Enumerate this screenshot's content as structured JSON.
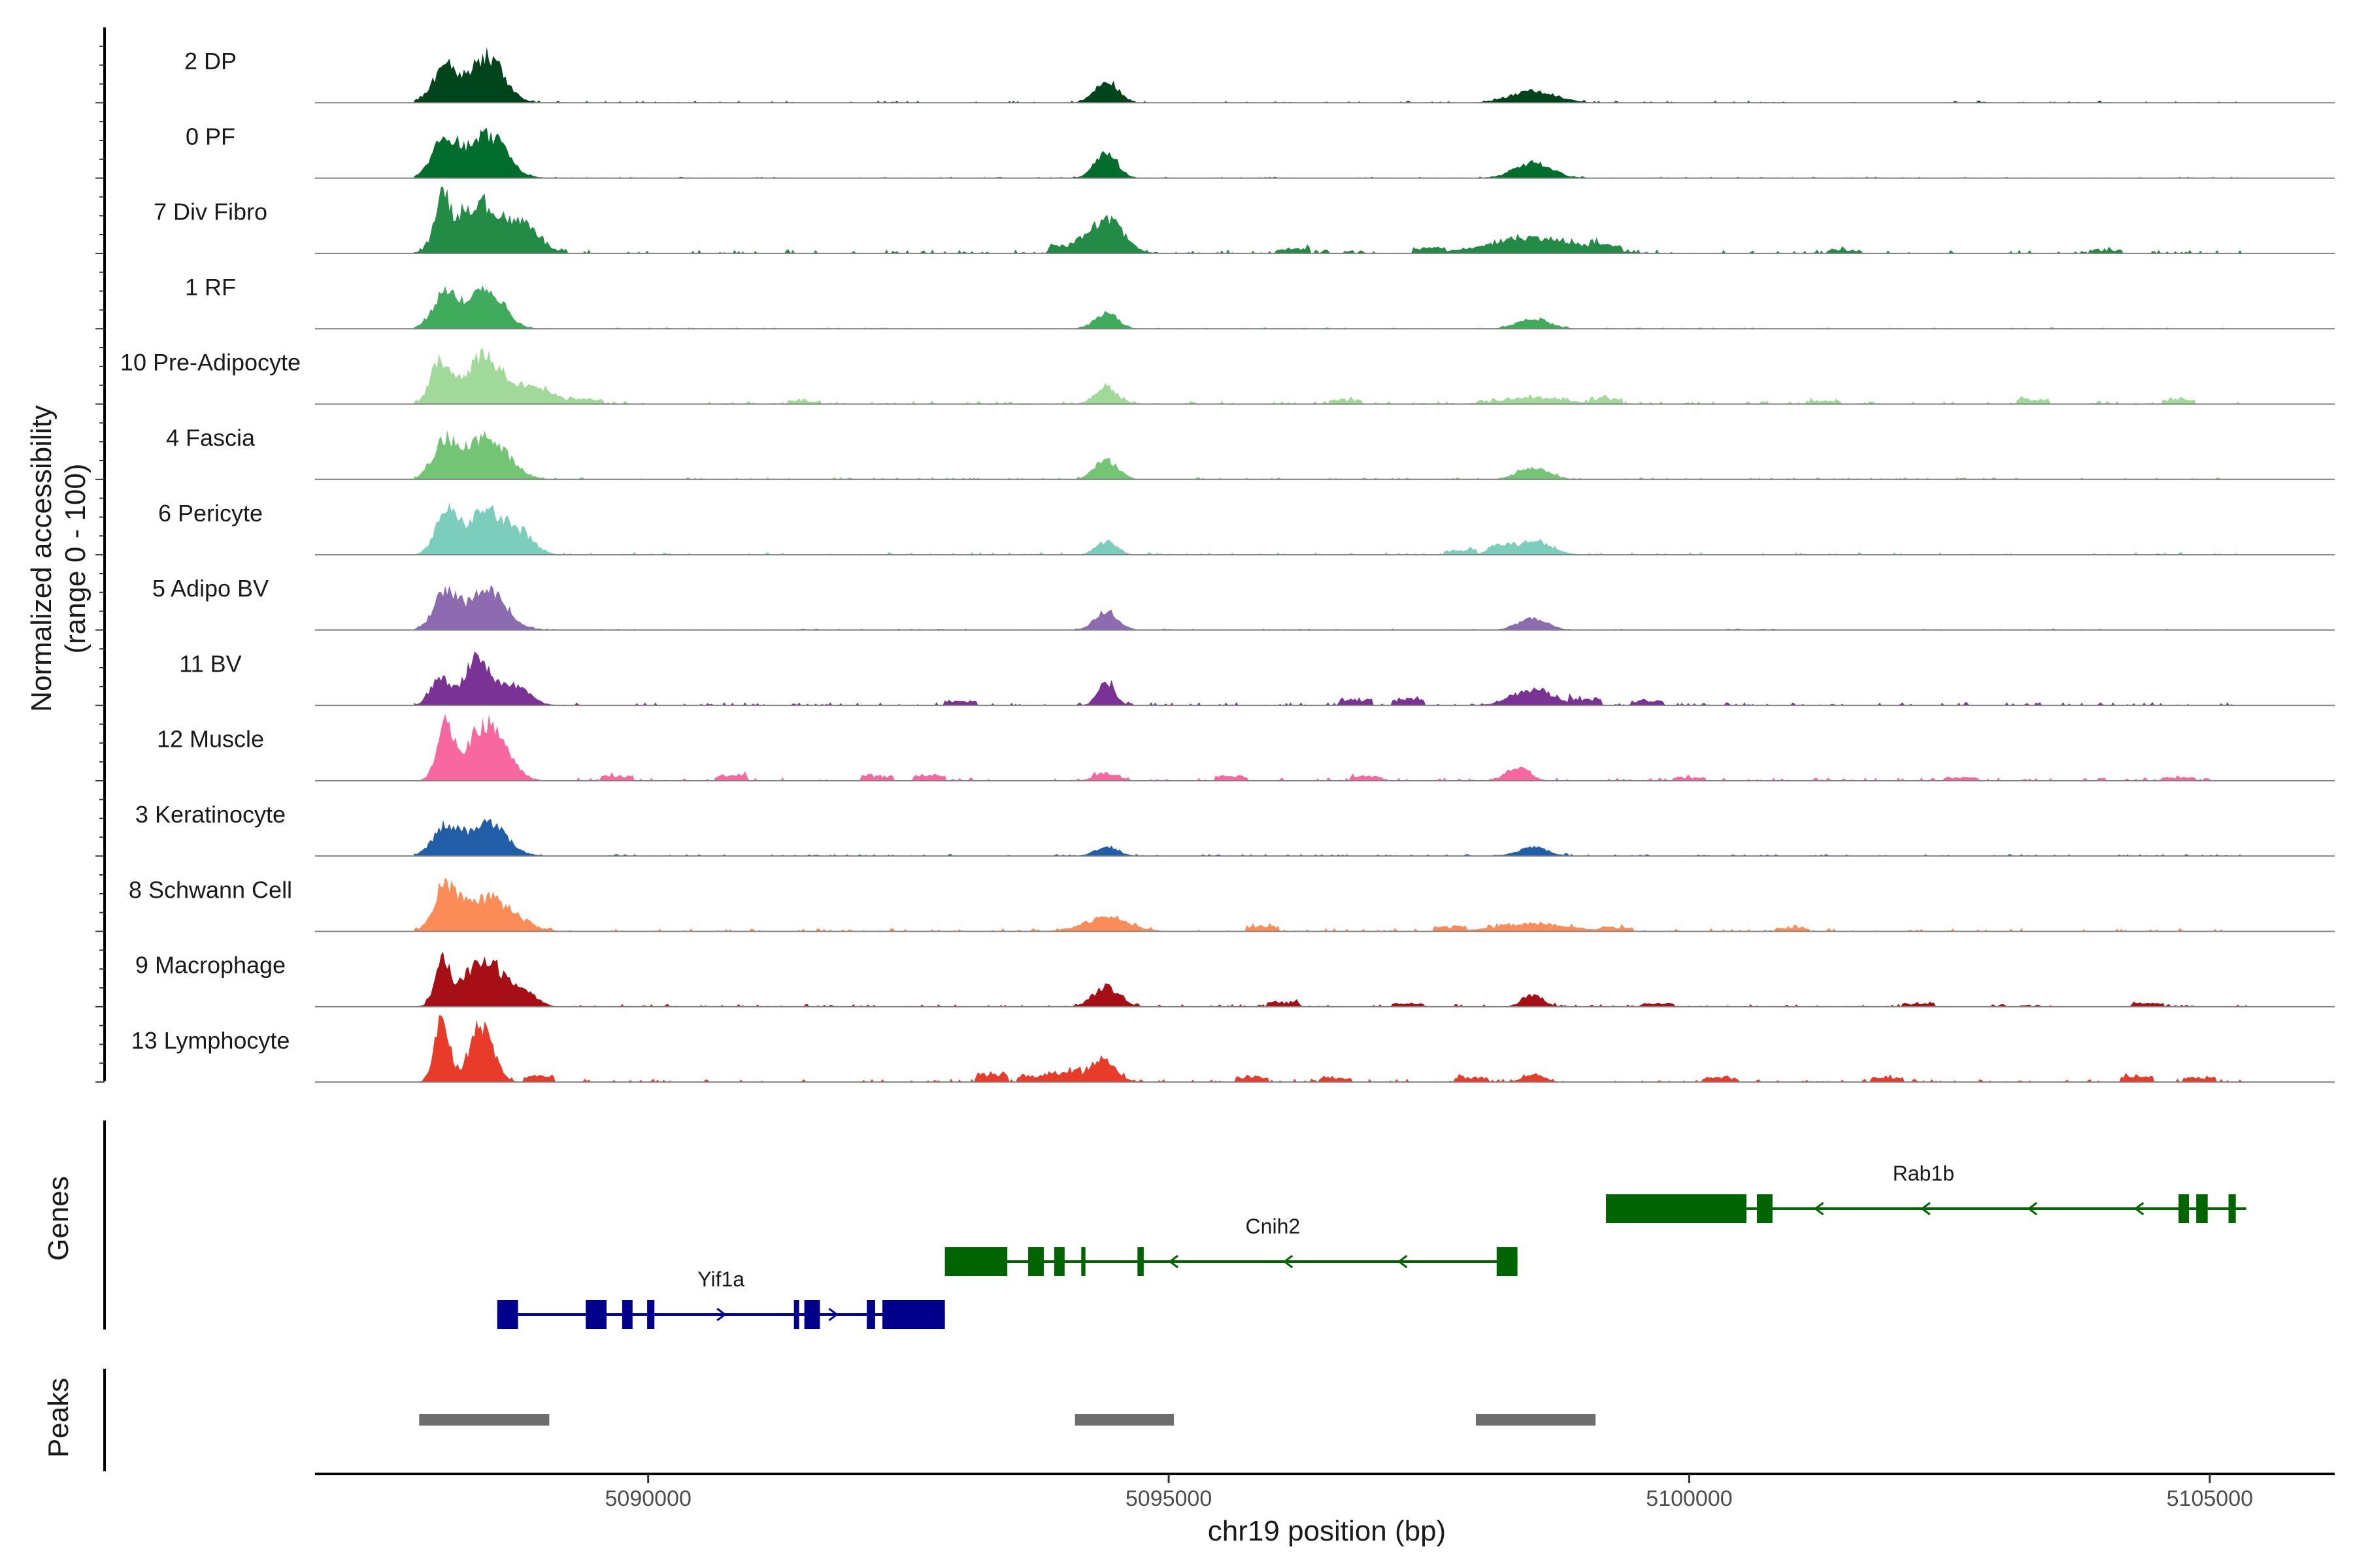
{
  "chart_data": {
    "type": "area",
    "title": "",
    "ylabel": "Normalized accessibility",
    "ylabel2": "(range 0 - 100)",
    "xlabel": "chr19 position (bp)",
    "xlim": [
      5086800,
      5106200
    ],
    "ylim": [
      0,
      100
    ],
    "x_ticks": [
      5090000,
      5095000,
      5100000,
      5105000
    ],
    "x_tick_labels": [
      "5090000",
      "5095000",
      "5100000",
      "5105000"
    ],
    "tracks": [
      {
        "name": "2 DP",
        "color": "#00441b",
        "peaks": [
          [
            5088050,
            52,
            120
          ],
          [
            5088450,
            70,
            160
          ],
          [
            5094400,
            34,
            110
          ],
          [
            5098500,
            18,
            220
          ]
        ],
        "noise": 3,
        "scatter": []
      },
      {
        "name": "0 PF",
        "color": "#006d2c",
        "peaks": [
          [
            5088050,
            58,
            120
          ],
          [
            5088450,
            66,
            180
          ],
          [
            5094400,
            36,
            110
          ],
          [
            5098500,
            22,
            180
          ]
        ],
        "noise": 2,
        "scatter": []
      },
      {
        "name": "7 Div Fibro",
        "color": "#238b45",
        "peaks": [
          [
            5088020,
            80,
            60
          ],
          [
            5088350,
            74,
            220
          ],
          [
            5088800,
            38,
            160
          ],
          [
            5094400,
            52,
            160
          ],
          [
            5098500,
            24,
            420
          ]
        ],
        "noise": 6,
        "scatter": [
          [
            5094000,
            12
          ],
          [
            5096200,
            8
          ],
          [
            5097500,
            8
          ],
          [
            5099200,
            10
          ],
          [
            5101500,
            6
          ],
          [
            5104000,
            6
          ]
        ]
      },
      {
        "name": "1 RF",
        "color": "#41ab5d",
        "peaks": [
          [
            5088050,
            52,
            120
          ],
          [
            5088450,
            60,
            160
          ],
          [
            5094400,
            24,
            110
          ],
          [
            5098500,
            16,
            150
          ]
        ],
        "noise": 2,
        "scatter": []
      },
      {
        "name": "10 Pre-Adipocyte",
        "color": "#a1d99b",
        "peaks": [
          [
            5088000,
            64,
            90
          ],
          [
            5088420,
            72,
            180
          ],
          [
            5088900,
            24,
            200
          ],
          [
            5094400,
            24,
            110
          ],
          [
            5098500,
            10,
            300
          ]
        ],
        "noise": 5,
        "scatter": [
          [
            5089400,
            8
          ],
          [
            5091500,
            6
          ],
          [
            5096700,
            8
          ],
          [
            5099200,
            10
          ],
          [
            5101300,
            6
          ],
          [
            5103300,
            8
          ],
          [
            5104700,
            8
          ]
        ]
      },
      {
        "name": "4 Fascia",
        "color": "#74c476",
        "peaks": [
          [
            5088050,
            52,
            120
          ],
          [
            5088450,
            62,
            200
          ],
          [
            5094400,
            30,
            110
          ],
          [
            5098500,
            18,
            150
          ]
        ],
        "noise": 3,
        "scatter": []
      },
      {
        "name": "6 Pericyte",
        "color": "#7ccdbb",
        "peaks": [
          [
            5088050,
            56,
            100
          ],
          [
            5088450,
            66,
            200
          ],
          [
            5088800,
            20,
            130
          ],
          [
            5094400,
            20,
            100
          ],
          [
            5098500,
            22,
            170
          ],
          [
            5098150,
            12,
            90
          ]
        ],
        "noise": 4,
        "scatter": [
          [
            5097800,
            8
          ]
        ]
      },
      {
        "name": "5 Adipo BV",
        "color": "#8c6bb1",
        "peaks": [
          [
            5088050,
            54,
            110
          ],
          [
            5088450,
            62,
            180
          ],
          [
            5094400,
            28,
            110
          ],
          [
            5098500,
            18,
            140
          ]
        ],
        "noise": 2,
        "scatter": []
      },
      {
        "name": "11 BV",
        "color": "#7a3294",
        "peaks": [
          [
            5088000,
            40,
            90
          ],
          [
            5088350,
            72,
            120
          ],
          [
            5088700,
            30,
            150
          ],
          [
            5094400,
            34,
            80
          ],
          [
            5098500,
            24,
            200
          ]
        ],
        "noise": 5,
        "scatter": [
          [
            5093000,
            8
          ],
          [
            5096800,
            10
          ],
          [
            5097300,
            12
          ],
          [
            5099000,
            10
          ],
          [
            5099600,
            8
          ]
        ]
      },
      {
        "name": "12 Muscle",
        "color": "#f768a1",
        "peaks": [
          [
            5088050,
            84,
            80
          ],
          [
            5088450,
            88,
            180
          ],
          [
            5094400,
            12,
            110
          ],
          [
            5098350,
            20,
            110
          ]
        ],
        "noise": 5,
        "scatter": [
          [
            5089700,
            8
          ],
          [
            5090800,
            10
          ],
          [
            5092200,
            8
          ],
          [
            5092700,
            10
          ],
          [
            5095600,
            8
          ],
          [
            5096900,
            8
          ],
          [
            5100000,
            6
          ],
          [
            5102600,
            6
          ],
          [
            5104700,
            6
          ]
        ]
      },
      {
        "name": "3 Keratinocyte",
        "color": "#225ea8",
        "peaks": [
          [
            5088050,
            44,
            120
          ],
          [
            5088450,
            50,
            180
          ],
          [
            5094400,
            14,
            110
          ],
          [
            5098500,
            14,
            140
          ]
        ],
        "noise": 3,
        "scatter": []
      },
      {
        "name": "8 Schwann Cell",
        "color": "#fc8d59",
        "peaks": [
          [
            5088050,
            60,
            100
          ],
          [
            5088450,
            50,
            250
          ],
          [
            5094400,
            20,
            220
          ],
          [
            5098500,
            12,
            350
          ]
        ],
        "noise": 5,
        "scatter": [
          [
            5095900,
            10
          ],
          [
            5097700,
            8
          ],
          [
            5099300,
            6
          ],
          [
            5101000,
            6
          ]
        ]
      },
      {
        "name": "9 Macrophage",
        "color": "#a50f15",
        "peaks": [
          [
            5088020,
            66,
            70
          ],
          [
            5088420,
            70,
            190
          ],
          [
            5088800,
            22,
            120
          ],
          [
            5094400,
            30,
            120
          ],
          [
            5098500,
            18,
            100
          ]
        ],
        "noise": 4,
        "scatter": [
          [
            5096100,
            8
          ],
          [
            5097300,
            6
          ],
          [
            5099700,
            6
          ],
          [
            5102200,
            6
          ],
          [
            5104400,
            6
          ]
        ]
      },
      {
        "name": "13 Lymphocyte",
        "color": "#e83b2a",
        "peaks": [
          [
            5088020,
            98,
            70
          ],
          [
            5088400,
            88,
            110
          ],
          [
            5094350,
            34,
            130
          ],
          [
            5098500,
            12,
            100
          ]
        ],
        "noise": 5,
        "scatter": [
          [
            5088950,
            10
          ],
          [
            5093300,
            14
          ],
          [
            5093700,
            12
          ],
          [
            5094000,
            16
          ],
          [
            5095800,
            8
          ],
          [
            5096600,
            8
          ],
          [
            5097900,
            8
          ],
          [
            5100300,
            8
          ],
          [
            5101900,
            8
          ],
          [
            5104300,
            10
          ],
          [
            5104900,
            8
          ]
        ]
      }
    ],
    "genes": [
      {
        "name": "Yif1a",
        "strand": "+",
        "color": "#00008b",
        "start": 5088550,
        "end": 5092850,
        "row": 2,
        "label_x": 5090700,
        "exons": [
          [
            5088550,
            5088750
          ],
          [
            5089400,
            5089600
          ],
          [
            5089750,
            5089850
          ],
          [
            5089990,
            5090060
          ],
          [
            5091400,
            5091450
          ],
          [
            5091500,
            5091650
          ],
          [
            5092100,
            5092180
          ],
          [
            5092250,
            5092850
          ]
        ]
      },
      {
        "name": "Cnih2",
        "strand": "-",
        "color": "#006400",
        "start": 5092850,
        "end": 5098350,
        "row": 1,
        "label_x": 5096000,
        "exons": [
          [
            5092850,
            5093450
          ],
          [
            5093650,
            5093800
          ],
          [
            5093900,
            5094000
          ],
          [
            5094160,
            5094200
          ],
          [
            5094700,
            5094760
          ],
          [
            5098150,
            5098350
          ]
        ]
      },
      {
        "name": "Rab1b",
        "strand": "-",
        "color": "#006400",
        "start": 5099200,
        "end": 5105350,
        "row": 0,
        "label_x": 5102250,
        "exons": [
          [
            5099200,
            5100550
          ],
          [
            5100650,
            5100800
          ],
          [
            5104700,
            5104800
          ],
          [
            5104870,
            5104980
          ],
          [
            5105180,
            5105250
          ]
        ]
      }
    ],
    "gene_track_label": "Genes",
    "peaks_track_label": "Peaks",
    "peak_regions": [
      [
        5087800,
        5089050
      ],
      [
        5094100,
        5095050
      ],
      [
        5097950,
        5099100
      ]
    ]
  }
}
